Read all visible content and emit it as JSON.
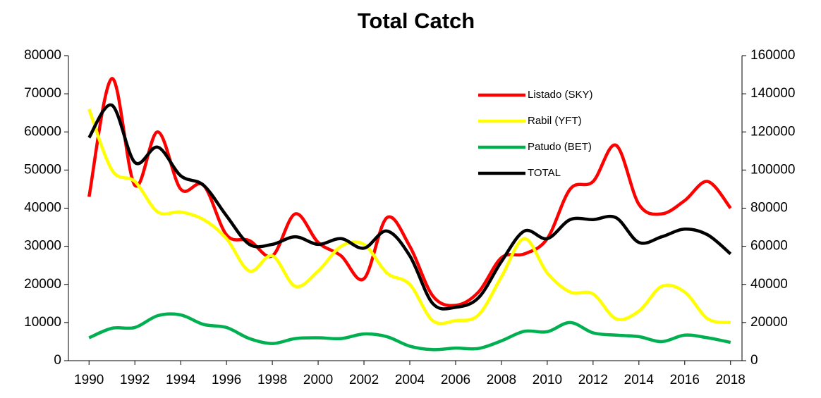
{
  "chart_data": {
    "type": "line",
    "title": "Total  Catch",
    "x": [
      1990,
      1991,
      1992,
      1993,
      1994,
      1995,
      1996,
      1997,
      1998,
      1999,
      2000,
      2001,
      2002,
      2003,
      2004,
      2005,
      2006,
      2007,
      2008,
      2009,
      2010,
      2011,
      2012,
      2013,
      2014,
      2015,
      2016,
      2017,
      2018
    ],
    "xlim": [
      1989.1,
      2018.5
    ],
    "xticks": [
      1990,
      1992,
      1994,
      1996,
      1998,
      2000,
      2002,
      2004,
      2006,
      2008,
      2010,
      2012,
      2014,
      2016,
      2018
    ],
    "ylim": [
      0,
      80000
    ],
    "yticks": [
      0,
      10000,
      20000,
      30000,
      40000,
      50000,
      60000,
      70000,
      80000
    ],
    "y2lim": [
      0,
      160000
    ],
    "y2ticks": [
      0,
      20000,
      40000,
      60000,
      80000,
      100000,
      120000,
      140000,
      160000
    ],
    "smooth": true,
    "series": [
      {
        "name": "Listado (SKY)",
        "color": "#ff0000",
        "values": [
          43000,
          74000,
          46000,
          60000,
          45000,
          46000,
          33000,
          31500,
          27500,
          38500,
          31000,
          27500,
          21500,
          37500,
          30000,
          17000,
          14500,
          18000,
          27000,
          28000,
          32000,
          45000,
          47000,
          56500,
          41000,
          38500,
          42000,
          47000,
          40000
        ]
      },
      {
        "name": "Rabil (YFT)",
        "color": "#ffff00",
        "values": [
          66000,
          50000,
          47000,
          39000,
          39000,
          37000,
          32000,
          23500,
          27500,
          19500,
          23500,
          30000,
          30500,
          23000,
          20000,
          10500,
          10500,
          12000,
          22000,
          32000,
          23000,
          18000,
          17500,
          11000,
          13000,
          19500,
          18000,
          11000,
          10000
        ]
      },
      {
        "name": "Patudo (BET)",
        "color": "#00b050",
        "values": [
          6000,
          8500,
          8700,
          11800,
          12000,
          9500,
          8700,
          5800,
          4500,
          5800,
          6000,
          5800,
          7000,
          6300,
          3800,
          2900,
          3300,
          3200,
          5200,
          7700,
          7600,
          10000,
          7300,
          6700,
          6300,
          5000,
          6700,
          6000,
          4800
        ]
      },
      {
        "name": "TOTAL",
        "color": "#000000",
        "axis": "y2",
        "values": [
          117000,
          134000,
          104000,
          112000,
          97000,
          92000,
          76000,
          61000,
          61000,
          65000,
          61000,
          64000,
          59000,
          68000,
          55000,
          30000,
          28000,
          33000,
          52000,
          68000,
          64000,
          74000,
          74000,
          75000,
          62000,
          65000,
          69000,
          66000,
          56000
        ]
      }
    ]
  }
}
